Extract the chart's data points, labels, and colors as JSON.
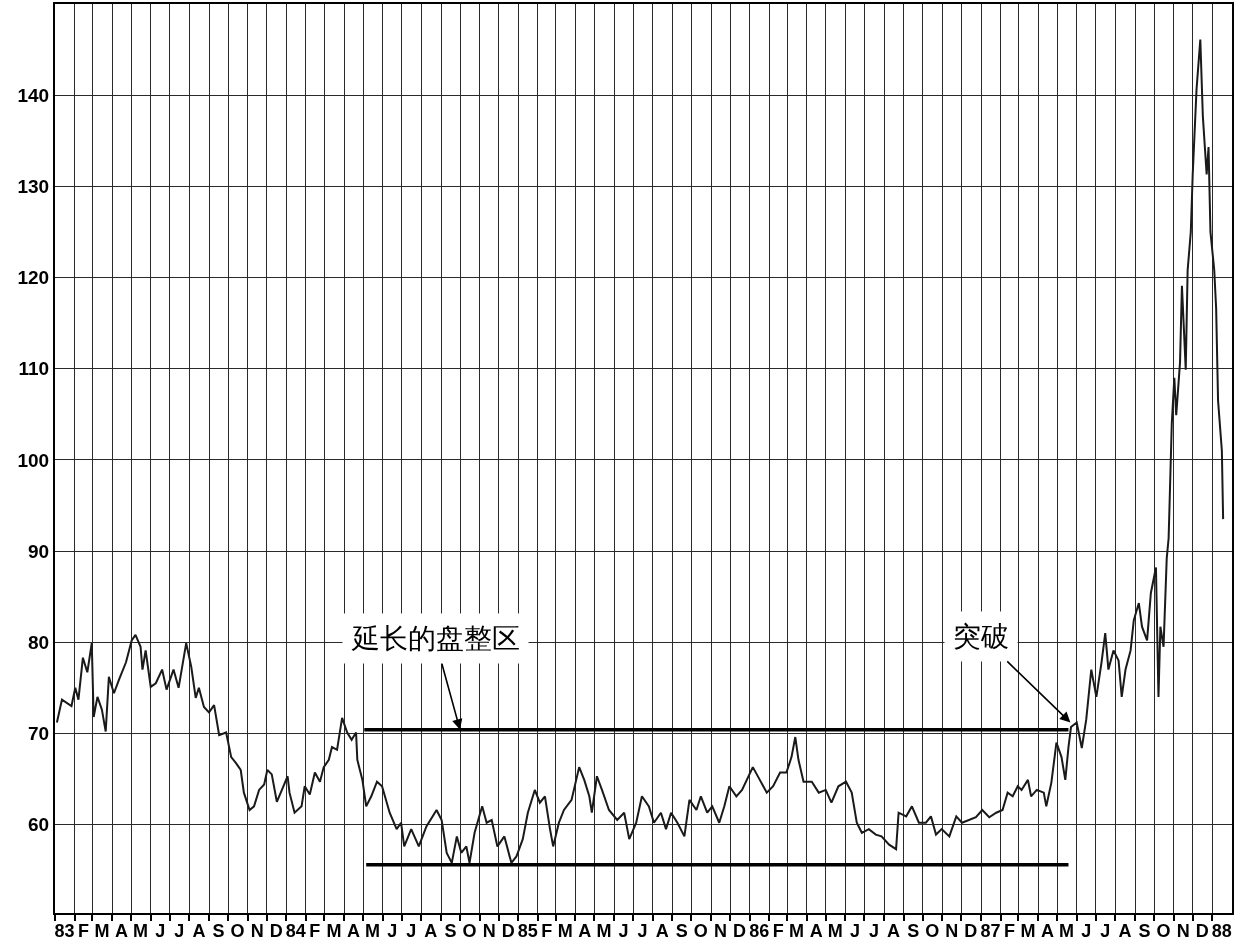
{
  "chart_data": {
    "type": "line",
    "x": [
      "1983-01-04",
      "1983-01-12",
      "1983-01-27",
      "1983-02-02",
      "1983-02-07",
      "1983-02-14",
      "1983-02-21",
      "1983-02-28",
      "1983-03-03",
      "1983-03-09",
      "1983-03-16",
      "1983-03-22",
      "1983-03-27",
      "1983-04-04",
      "1983-04-12",
      "1983-04-23",
      "1983-05-02",
      "1983-05-08",
      "1983-05-16",
      "1983-05-19",
      "1983-05-24",
      "1983-06-01",
      "1983-06-09",
      "1983-06-19",
      "1983-06-26",
      "1983-07-07",
      "1983-07-15",
      "1983-07-27",
      "1983-08-04",
      "1983-08-11",
      "1983-08-16",
      "1983-08-24",
      "1983-09-01",
      "1983-09-09",
      "1983-09-17",
      "1983-09-28",
      "1983-10-06",
      "1983-10-13",
      "1983-10-21",
      "1983-10-26",
      "1983-11-04",
      "1983-11-11",
      "1983-11-19",
      "1983-11-27",
      "1983-12-02",
      "1983-12-09",
      "1983-12-17",
      "1983-12-25",
      "1984-01-03",
      "1984-01-06",
      "1984-01-14",
      "1984-01-25",
      "1984-01-30",
      "1984-02-07",
      "1984-02-15",
      "1984-02-23",
      "1984-02-29",
      "1984-03-08",
      "1984-03-13",
      "1984-03-21",
      "1984-03-29",
      "1984-04-06",
      "1984-04-13",
      "1984-04-20",
      "1984-04-22",
      "1984-04-30",
      "1984-05-06",
      "1984-05-14",
      "1984-05-23",
      "1984-05-31",
      "1984-06-12",
      "1984-06-23",
      "1984-06-30",
      "1984-07-05",
      "1984-07-16",
      "1984-07-28",
      "1984-08-09",
      "1984-08-25",
      "1984-09-02",
      "1984-09-10",
      "1984-09-18",
      "1984-09-26",
      "1984-10-03",
      "1984-10-11",
      "1984-10-16",
      "1984-10-24",
      "1984-11-05",
      "1984-11-12",
      "1984-11-20",
      "1984-11-29",
      "1984-12-10",
      "1984-12-21",
      "1984-12-29",
      "1985-01-08",
      "1985-01-16",
      "1985-01-27",
      "1985-02-04",
      "1985-02-12",
      "1985-02-20",
      "1985-02-25",
      "1985-03-06",
      "1985-03-14",
      "1985-03-26",
      "1985-04-07",
      "1985-04-15",
      "1985-04-23",
      "1985-04-27",
      "1985-05-05",
      "1985-05-13",
      "1985-05-24",
      "1985-06-06",
      "1985-06-17",
      "1985-06-25",
      "1985-07-06",
      "1985-07-15",
      "1985-07-26",
      "1985-08-03",
      "1985-08-14",
      "1985-08-22",
      "1985-08-30",
      "1985-09-09",
      "1985-09-20",
      "1985-09-28",
      "1985-10-09",
      "1985-10-16",
      "1985-10-26",
      "1985-11-03",
      "1985-11-14",
      "1985-11-22",
      "1985-11-30",
      "1985-12-11",
      "1985-12-20",
      "1986-01-06",
      "1986-01-17",
      "1986-01-28",
      "1986-02-07",
      "1986-02-18",
      "1986-02-28",
      "1986-03-08",
      "1986-03-14",
      "1986-03-19",
      "1986-03-27",
      "1986-04-09",
      "1986-04-20",
      "1986-05-01",
      "1986-05-10",
      "1986-05-21",
      "1986-06-02",
      "1986-06-11",
      "1986-06-19",
      "1986-06-27",
      "1986-07-08",
      "1986-07-19",
      "1986-07-28",
      "1986-08-09",
      "1986-08-20",
      "1986-08-24",
      "1986-09-05",
      "1986-09-14",
      "1986-09-25",
      "1986-10-06",
      "1986-10-14",
      "1986-10-22",
      "1986-10-31",
      "1986-11-12",
      "1986-11-23",
      "1986-12-02",
      "1986-12-13",
      "1986-12-24",
      "1987-01-03",
      "1987-01-14",
      "1987-01-25",
      "1987-02-04",
      "1987-02-12",
      "1987-02-20",
      "1987-02-28",
      "1987-03-06",
      "1987-03-16",
      "1987-03-21",
      "1987-03-30",
      "1987-04-10",
      "1987-04-14",
      "1987-04-22",
      "1987-04-30",
      "1987-05-08",
      "1987-05-14",
      "1987-05-19",
      "1987-05-23",
      "1987-06-01",
      "1987-06-09",
      "1987-06-16",
      "1987-06-24",
      "1987-07-02",
      "1987-07-10",
      "1987-07-16",
      "1987-07-21",
      "1987-07-29",
      "1987-08-06",
      "1987-08-11",
      "1987-08-17",
      "1987-08-25",
      "1987-08-30",
      "1987-09-07",
      "1987-09-12",
      "1987-09-20",
      "1987-09-26",
      "1987-10-04",
      "1987-10-08",
      "1987-10-11",
      "1987-10-16",
      "1987-10-21",
      "1987-10-24",
      "1987-10-29",
      "1987-11-02",
      "1987-11-05",
      "1987-11-11",
      "1987-11-14",
      "1987-11-20",
      "1987-11-23",
      "1987-11-28",
      "1987-12-01",
      "1987-12-07",
      "1987-12-13",
      "1987-12-17",
      "1987-12-23",
      "1987-12-26",
      "1987-12-29",
      "1988-01-04",
      "1988-01-07",
      "1988-01-10",
      "1988-01-16",
      "1988-01-18"
    ],
    "series": [
      {
        "color": "#1a1a1a",
        "values": [
          71.2,
          73.7,
          73,
          75,
          73.7,
          78.3,
          76.7,
          79.9,
          71.8,
          74,
          72.6,
          70.2,
          76.2,
          74.4,
          75.9,
          77.8,
          80.2,
          80.8,
          79.5,
          77,
          79.1,
          75.1,
          75.5,
          77,
          74.8,
          77,
          75,
          79.9,
          77.3,
          73.9,
          75,
          72.9,
          72.3,
          73.1,
          69.8,
          70.1,
          67.4,
          66.8,
          66,
          63.5,
          61.6,
          62,
          63.8,
          64.4,
          66,
          65.5,
          62.5,
          63.8,
          65.3,
          63.5,
          61.3,
          62,
          64.2,
          63.3,
          65.7,
          64.7,
          66.3,
          67.1,
          68.5,
          68.2,
          71.7,
          70.1,
          69.3,
          70.1,
          67.1,
          64.9,
          62,
          63.1,
          64.7,
          64.2,
          61.3,
          59.5,
          60.2,
          57.6,
          59.5,
          57.6,
          59.8,
          61.6,
          60.5,
          56.9,
          55.8,
          58.7,
          56.9,
          57.6,
          55.8,
          59.1,
          62,
          60.2,
          60.5,
          57.6,
          58.7,
          55.8,
          56.5,
          58.4,
          61.3,
          63.8,
          62.4,
          63.1,
          59.5,
          57.6,
          60.2,
          61.6,
          62.7,
          66.3,
          64.9,
          63.1,
          61.3,
          65.3,
          63.8,
          61.6,
          60.5,
          61.3,
          58.4,
          60.2,
          63.1,
          62,
          60.2,
          61.3,
          59.5,
          61.3,
          60.2,
          58.7,
          62.7,
          61.6,
          63.1,
          61.3,
          62,
          60.2,
          62,
          64.2,
          63.1,
          63.8,
          66.3,
          64.9,
          63.5,
          64.2,
          65.7,
          65.7,
          67.4,
          69.6,
          67.1,
          64.7,
          64.7,
          63.5,
          63.8,
          62.4,
          64.2,
          64.7,
          63.5,
          60.2,
          59.1,
          59.5,
          58.9,
          58.7,
          57.8,
          57.3,
          61.3,
          60.9,
          62,
          60.2,
          60.2,
          60.9,
          58.9,
          59.5,
          58.7,
          60.9,
          60.2,
          60.5,
          60.8,
          61.6,
          60.8,
          61.3,
          61.6,
          63.5,
          63.1,
          64.2,
          63.8,
          64.9,
          63.1,
          63.8,
          63.5,
          62,
          64.6,
          69,
          67.4,
          64.9,
          68.5,
          70.7,
          71.2,
          68.4,
          71.5,
          77,
          74,
          77.7,
          81,
          77,
          79.1,
          78,
          74,
          77,
          79.1,
          82.4,
          84.3,
          81.7,
          80.2,
          85.4,
          88.2,
          74,
          81.7,
          79.5,
          89.2,
          91.4,
          104,
          109,
          104.9,
          110.7,
          119.1,
          109.9,
          120.8,
          125,
          131.3,
          140.6,
          146.1,
          137.7,
          131.3,
          134.3,
          125,
          120.8,
          116.6,
          106.5,
          101,
          93.5
        ]
      },
      {
        "type": "line",
        "color": "#000000",
        "x": [
          "1984-05-03",
          "1987-05-19"
        ],
        "values": [
          70.4,
          70.4
        ]
      },
      {
        "type": "line",
        "color": "#000000",
        "x": [
          "1984-05-06",
          "1987-05-19"
        ],
        "values": [
          55.6,
          55.6
        ]
      }
    ],
    "xlim": [
      "1983-01-01",
      "1988-02-01"
    ],
    "xticks": [
      {
        "value": "1983-01-01",
        "label": null
      },
      {
        "value": "1983-01-16",
        "label": "83"
      },
      {
        "value": "1983-02-01",
        "label": null
      },
      {
        "value": "1983-02-15",
        "label": "F"
      },
      {
        "value": "1983-03-01",
        "label": null
      },
      {
        "value": "1983-03-16",
        "label": "M"
      },
      {
        "value": "1983-04-01",
        "label": null
      },
      {
        "value": "1983-04-16",
        "label": "A"
      },
      {
        "value": "1983-05-01",
        "label": null
      },
      {
        "value": "1983-05-16",
        "label": "M"
      },
      {
        "value": "1983-06-01",
        "label": null
      },
      {
        "value": "1983-06-16",
        "label": "J"
      },
      {
        "value": "1983-07-01",
        "label": null
      },
      {
        "value": "1983-07-16",
        "label": "J"
      },
      {
        "value": "1983-08-01",
        "label": null
      },
      {
        "value": "1983-08-16",
        "label": "A"
      },
      {
        "value": "1983-09-01",
        "label": null
      },
      {
        "value": "1983-09-16",
        "label": "S"
      },
      {
        "value": "1983-10-01",
        "label": null
      },
      {
        "value": "1983-10-16",
        "label": "O"
      },
      {
        "value": "1983-11-01",
        "label": null
      },
      {
        "value": "1983-11-16",
        "label": "N"
      },
      {
        "value": "1983-12-01",
        "label": null
      },
      {
        "value": "1983-12-16",
        "label": "D"
      },
      {
        "value": "1984-01-01",
        "label": null
      },
      {
        "value": "1984-01-16",
        "label": "84"
      },
      {
        "value": "1984-02-01",
        "label": null
      },
      {
        "value": "1984-02-15",
        "label": "F"
      },
      {
        "value": "1984-03-01",
        "label": null
      },
      {
        "value": "1984-03-16",
        "label": "M"
      },
      {
        "value": "1984-04-01",
        "label": null
      },
      {
        "value": "1984-04-16",
        "label": "A"
      },
      {
        "value": "1984-05-01",
        "label": null
      },
      {
        "value": "1984-05-16",
        "label": "M"
      },
      {
        "value": "1984-06-01",
        "label": null
      },
      {
        "value": "1984-06-16",
        "label": "J"
      },
      {
        "value": "1984-07-01",
        "label": null
      },
      {
        "value": "1984-07-16",
        "label": "J"
      },
      {
        "value": "1984-08-01",
        "label": null
      },
      {
        "value": "1984-08-16",
        "label": "A"
      },
      {
        "value": "1984-09-01",
        "label": null
      },
      {
        "value": "1984-09-16",
        "label": "S"
      },
      {
        "value": "1984-10-01",
        "label": null
      },
      {
        "value": "1984-10-16",
        "label": "O"
      },
      {
        "value": "1984-11-01",
        "label": null
      },
      {
        "value": "1984-11-16",
        "label": "N"
      },
      {
        "value": "1984-12-01",
        "label": null
      },
      {
        "value": "1984-12-16",
        "label": "D"
      },
      {
        "value": "1985-01-01",
        "label": null
      },
      {
        "value": "1985-01-16",
        "label": "85"
      },
      {
        "value": "1985-02-01",
        "label": null
      },
      {
        "value": "1985-02-15",
        "label": "F"
      },
      {
        "value": "1985-03-01",
        "label": null
      },
      {
        "value": "1985-03-16",
        "label": "M"
      },
      {
        "value": "1985-04-01",
        "label": null
      },
      {
        "value": "1985-04-16",
        "label": "A"
      },
      {
        "value": "1985-05-01",
        "label": null
      },
      {
        "value": "1985-05-16",
        "label": "M"
      },
      {
        "value": "1985-06-01",
        "label": null
      },
      {
        "value": "1985-06-16",
        "label": "J"
      },
      {
        "value": "1985-07-01",
        "label": null
      },
      {
        "value": "1985-07-16",
        "label": "J"
      },
      {
        "value": "1985-08-01",
        "label": null
      },
      {
        "value": "1985-08-16",
        "label": "A"
      },
      {
        "value": "1985-09-01",
        "label": null
      },
      {
        "value": "1985-09-16",
        "label": "S"
      },
      {
        "value": "1985-10-01",
        "label": null
      },
      {
        "value": "1985-10-16",
        "label": "O"
      },
      {
        "value": "1985-11-01",
        "label": null
      },
      {
        "value": "1985-11-16",
        "label": "N"
      },
      {
        "value": "1985-12-01",
        "label": null
      },
      {
        "value": "1985-12-16",
        "label": "D"
      },
      {
        "value": "1986-01-01",
        "label": null
      },
      {
        "value": "1986-01-16",
        "label": "86"
      },
      {
        "value": "1986-02-01",
        "label": null
      },
      {
        "value": "1986-02-15",
        "label": "F"
      },
      {
        "value": "1986-03-01",
        "label": null
      },
      {
        "value": "1986-03-16",
        "label": "M"
      },
      {
        "value": "1986-04-01",
        "label": null
      },
      {
        "value": "1986-04-16",
        "label": "A"
      },
      {
        "value": "1986-05-01",
        "label": null
      },
      {
        "value": "1986-05-16",
        "label": "M"
      },
      {
        "value": "1986-06-01",
        "label": null
      },
      {
        "value": "1986-06-16",
        "label": "J"
      },
      {
        "value": "1986-07-01",
        "label": null
      },
      {
        "value": "1986-07-16",
        "label": "J"
      },
      {
        "value": "1986-08-01",
        "label": null
      },
      {
        "value": "1986-08-16",
        "label": "A"
      },
      {
        "value": "1986-09-01",
        "label": null
      },
      {
        "value": "1986-09-16",
        "label": "S"
      },
      {
        "value": "1986-10-01",
        "label": null
      },
      {
        "value": "1986-10-16",
        "label": "O"
      },
      {
        "value": "1986-11-01",
        "label": null
      },
      {
        "value": "1986-11-16",
        "label": "N"
      },
      {
        "value": "1986-12-01",
        "label": null
      },
      {
        "value": "1986-12-16",
        "label": "D"
      },
      {
        "value": "1987-01-01",
        "label": null
      },
      {
        "value": "1987-01-16",
        "label": "87"
      },
      {
        "value": "1987-02-01",
        "label": null
      },
      {
        "value": "1987-02-15",
        "label": "F"
      },
      {
        "value": "1987-03-01",
        "label": null
      },
      {
        "value": "1987-03-16",
        "label": "M"
      },
      {
        "value": "1987-04-01",
        "label": null
      },
      {
        "value": "1987-04-16",
        "label": "A"
      },
      {
        "value": "1987-05-01",
        "label": null
      },
      {
        "value": "1987-05-16",
        "label": "M"
      },
      {
        "value": "1987-06-01",
        "label": null
      },
      {
        "value": "1987-06-16",
        "label": "J"
      },
      {
        "value": "1987-07-01",
        "label": null
      },
      {
        "value": "1987-07-16",
        "label": "J"
      },
      {
        "value": "1987-08-01",
        "label": null
      },
      {
        "value": "1987-08-16",
        "label": "A"
      },
      {
        "value": "1987-09-01",
        "label": null
      },
      {
        "value": "1987-09-16",
        "label": "S"
      },
      {
        "value": "1987-10-01",
        "label": null
      },
      {
        "value": "1987-10-16",
        "label": "O"
      },
      {
        "value": "1987-11-01",
        "label": null
      },
      {
        "value": "1987-11-16",
        "label": "N"
      },
      {
        "value": "1987-12-01",
        "label": null
      },
      {
        "value": "1987-12-16",
        "label": "D"
      },
      {
        "value": "1988-01-01",
        "label": null
      },
      {
        "value": "1988-01-16",
        "label": "88"
      }
    ],
    "ylim": [
      50.3,
      150
    ],
    "yticks": [
      60,
      70,
      80,
      90,
      100,
      110,
      120,
      130,
      140
    ],
    "grid": true,
    "marker": "none",
    "line_style": "solid",
    "annotations": [
      {
        "text": "延长的盘整区",
        "x": "1984-10-01",
        "y": 70.4
      },
      {
        "text": "突破",
        "x": "1987-05-22",
        "y": 71.2
      }
    ]
  }
}
